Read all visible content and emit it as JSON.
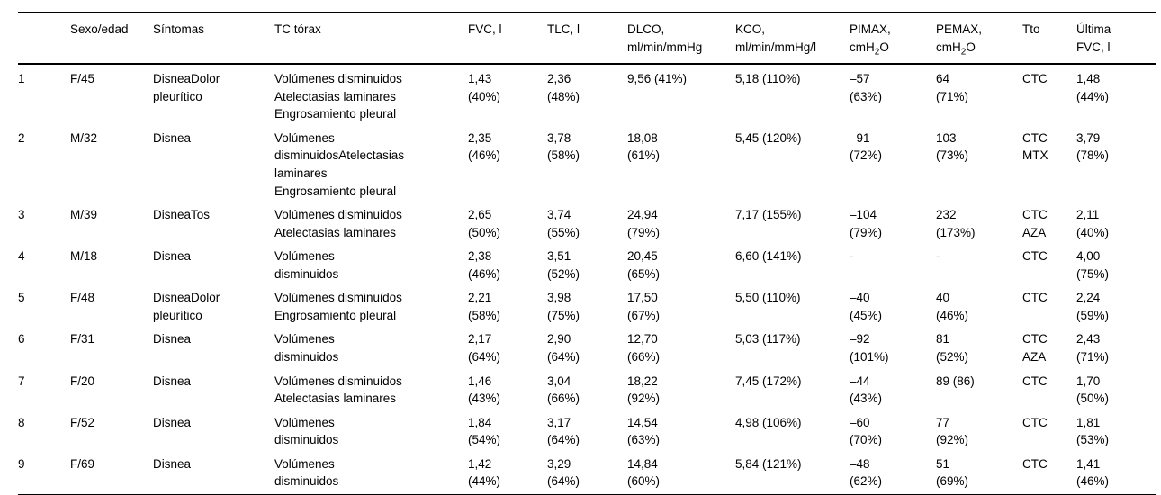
{
  "table": {
    "headers": {
      "num": "",
      "sexo_edad": "Sexo/edad",
      "sintomas": "Síntomas",
      "tc_torax": "TC tórax",
      "fvc": "FVC, l",
      "tlc": "TLC, l",
      "dlco": "DLCO,\nml/min/mmHg",
      "kco": "KCO,\nml/min/mmHg/l",
      "pimax_line1": "PIMAX,",
      "pemax_line1": "PEMAX,",
      "unit_cmh2o": {
        "prefix": "cmH",
        "sub": "2",
        "suffix": "O"
      },
      "tto": "Tto",
      "ultima_fvc": "Última\nFVC, l"
    },
    "rows": [
      {
        "num": "1",
        "sexo_edad": "F/45",
        "sintomas": "DisneaDolor\npleurítico",
        "tc_torax": "Volúmenes disminuidos\nAtelectasias laminares\nEngrosamiento pleural",
        "fvc": "1,43\n(40%)",
        "tlc": "2,36\n(48%)",
        "dlco": "9,56 (41%)",
        "kco": "5,18 (110%)",
        "pimax": "–57\n(63%)",
        "pemax": "64\n(71%)",
        "tto": "CTC",
        "ultima_fvc": "1,48\n(44%)"
      },
      {
        "num": "2",
        "sexo_edad": "M/32",
        "sintomas": "Disnea",
        "tc_torax": "Volúmenes\ndisminuidosAtelectasias\nlaminares\nEngrosamiento pleural",
        "fvc": "2,35\n(46%)",
        "tlc": "3,78\n(58%)",
        "dlco": "18,08\n(61%)",
        "kco": "5,45 (120%)",
        "pimax": "–91\n(72%)",
        "pemax": "103\n(73%)",
        "tto": "CTC\nMTX",
        "ultima_fvc": "3,79\n(78%)"
      },
      {
        "num": "3",
        "sexo_edad": "M/39",
        "sintomas": "DisneaTos",
        "tc_torax": "Volúmenes disminuidos\nAtelectasias laminares",
        "fvc": "2,65\n(50%)",
        "tlc": "3,74\n(55%)",
        "dlco": "24,94\n(79%)",
        "kco": "7,17 (155%)",
        "pimax": "–104\n(79%)",
        "pemax": "232\n(173%)",
        "tto": "CTC\nAZA",
        "ultima_fvc": "2,11\n(40%)"
      },
      {
        "num": "4",
        "sexo_edad": "M/18",
        "sintomas": "Disnea",
        "tc_torax": "Volúmenes\ndisminuidos",
        "fvc": "2,38\n(46%)",
        "tlc": "3,51\n(52%)",
        "dlco": "20,45\n(65%)",
        "kco": "6,60 (141%)",
        "pimax": "-",
        "pemax": "-",
        "tto": "CTC",
        "ultima_fvc": "4,00\n(75%)"
      },
      {
        "num": "5",
        "sexo_edad": "F/48",
        "sintomas": "DisneaDolor\npleurítico",
        "tc_torax": "Volúmenes disminuidos\nEngrosamiento pleural",
        "fvc": "2,21\n(58%)",
        "tlc": "3,98\n(75%)",
        "dlco": "17,50\n(67%)",
        "kco": "5,50 (110%)",
        "pimax": "–40\n(45%)",
        "pemax": "40\n(46%)",
        "tto": "CTC",
        "ultima_fvc": "2,24\n(59%)"
      },
      {
        "num": "6",
        "sexo_edad": "F/31",
        "sintomas": "Disnea",
        "tc_torax": "Volúmenes\ndisminuidos",
        "fvc": "2,17\n(64%)",
        "tlc": "2,90\n(64%)",
        "dlco": "12,70\n(66%)",
        "kco": "5,03 (117%)",
        "pimax": "–92\n(101%)",
        "pemax": "81\n(52%)",
        "tto": "CTC\nAZA",
        "ultima_fvc": "2,43\n(71%)"
      },
      {
        "num": "7",
        "sexo_edad": "F/20",
        "sintomas": "Disnea",
        "tc_torax": "Volúmenes disminuidos\nAtelectasias laminares",
        "fvc": "1,46\n(43%)",
        "tlc": "3,04\n(66%)",
        "dlco": "18,22\n(92%)",
        "kco": "7,45 (172%)",
        "pimax": "–44\n(43%)",
        "pemax": "89 (86)",
        "tto": "CTC",
        "ultima_fvc": "1,70\n(50%)"
      },
      {
        "num": "8",
        "sexo_edad": "F/52",
        "sintomas": "Disnea",
        "tc_torax": "Volúmenes\ndisminuidos",
        "fvc": "1,84\n(54%)",
        "tlc": "3,17\n(64%)",
        "dlco": "14,54\n(63%)",
        "kco": "4,98 (106%)",
        "pimax": "–60\n(70%)",
        "pemax": "77\n(92%)",
        "tto": "CTC",
        "ultima_fvc": "1,81\n(53%)"
      },
      {
        "num": "9",
        "sexo_edad": "F/69",
        "sintomas": "Disnea",
        "tc_torax": "Volúmenes\ndisminuidos",
        "fvc": "1,42\n(44%)",
        "tlc": "3,29\n(64%)",
        "dlco": "14,84\n(60%)",
        "kco": "5,84 (121%)",
        "pimax": "–48\n(62%)",
        "pemax": "51\n(69%)",
        "tto": "CTC",
        "ultima_fvc": "1,41\n(46%)"
      }
    ]
  }
}
